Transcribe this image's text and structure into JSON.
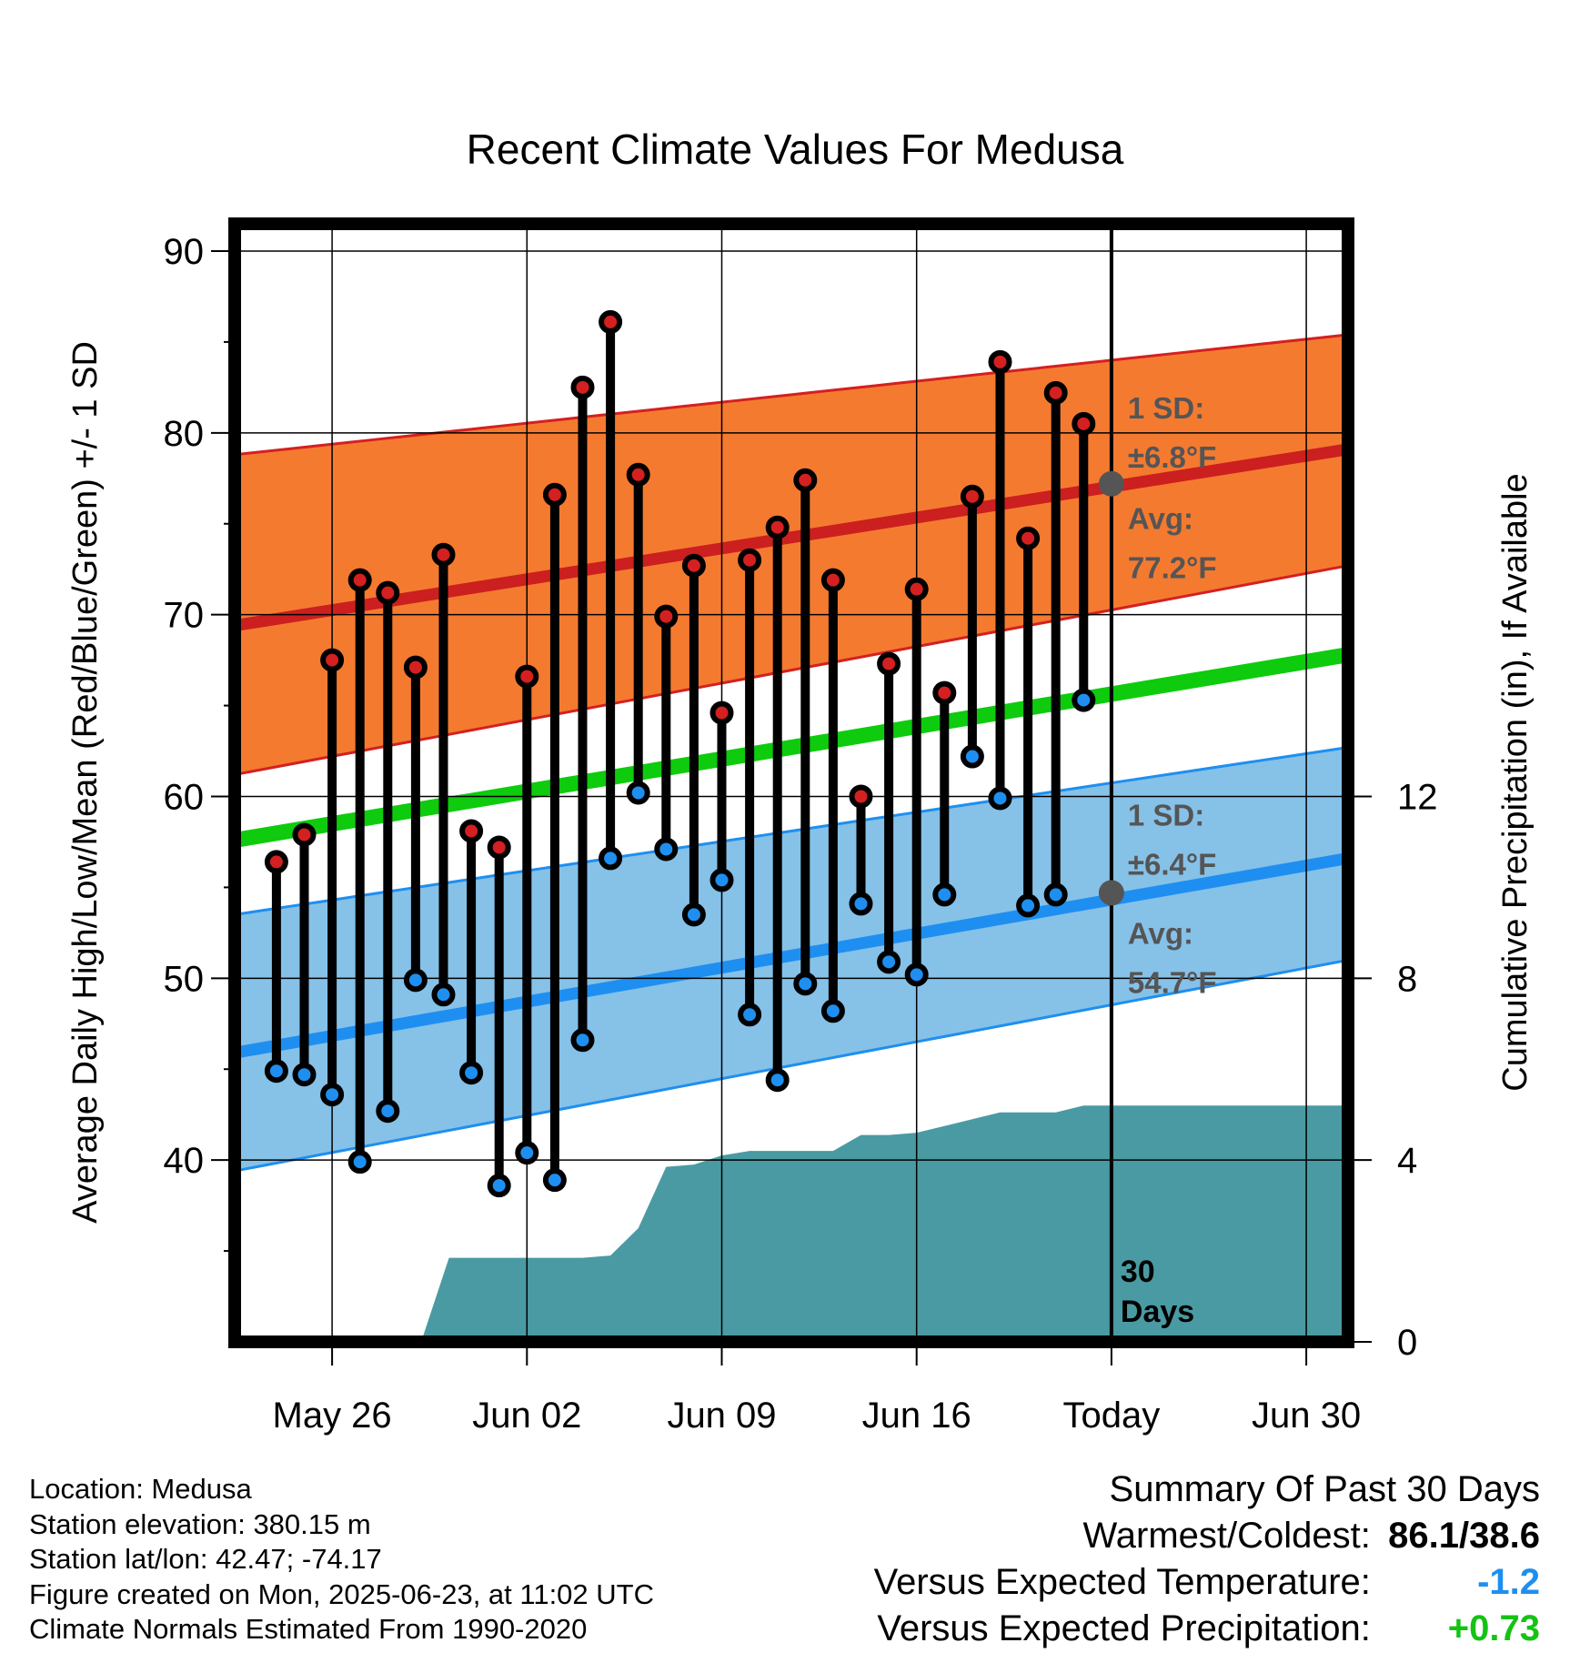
{
  "chart_data": {
    "type": "line",
    "title": "Recent Climate Values For Medusa",
    "xlabel": "Day",
    "ylabel": "Average Daily High/Low/Mean (Red/Blue/Green) +/- 1 SD",
    "y2label": "Cumulative Precipitation (in), If Available",
    "ylim": [
      30,
      91.5
    ],
    "y2lim": [
      0,
      24.6
    ],
    "x_ticks": [
      {
        "day": 4,
        "label": "May 26"
      },
      {
        "day": 11,
        "label": "Jun 02"
      },
      {
        "day": 18,
        "label": "Jun 09"
      },
      {
        "day": 25,
        "label": "Jun 16"
      },
      {
        "day": 32,
        "label": "Today"
      },
      {
        "day": 39,
        "label": "Jun 30"
      }
    ],
    "y_ticks": [
      40,
      50,
      60,
      70,
      80,
      90
    ],
    "y2_ticks": [
      0,
      4,
      8,
      12
    ],
    "grid": true,
    "days": [
      2,
      3,
      4,
      5,
      6,
      7,
      8,
      9,
      10,
      11,
      12,
      13,
      14,
      15,
      16,
      17,
      18,
      19,
      20,
      21,
      22,
      23,
      24,
      25,
      26,
      27,
      28,
      29,
      30,
      31
    ],
    "series": [
      {
        "name": "High",
        "color": "#d42020",
        "values": [
          56.4,
          57.9,
          67.5,
          71.9,
          71.2,
          67.1,
          73.3,
          58.1,
          57.2,
          66.6,
          76.6,
          82.5,
          86.1,
          77.7,
          69.9,
          72.7,
          64.6,
          73.0,
          74.8,
          77.4,
          71.9,
          60.0,
          67.3,
          71.4,
          65.7,
          76.5,
          83.9,
          74.2,
          82.2,
          80.5
        ]
      },
      {
        "name": "Low",
        "color": "#1e8ff0",
        "values": [
          44.9,
          44.7,
          43.6,
          39.9,
          42.7,
          49.9,
          49.1,
          44.8,
          38.6,
          40.4,
          38.9,
          46.6,
          56.6,
          60.2,
          57.1,
          53.5,
          55.4,
          48.0,
          44.4,
          49.7,
          48.2,
          54.1,
          50.9,
          50.2,
          54.6,
          62.2,
          59.9,
          54.0,
          54.6,
          65.3
        ]
      }
    ],
    "normals": {
      "days": [
        0.5,
        40.5
      ],
      "high_mean": [
        69.4,
        79.1
      ],
      "high_sd_upper": [
        78.8,
        85.4
      ],
      "high_sd_lower": [
        61.2,
        72.7
      ],
      "low_mean": [
        45.9,
        56.6
      ],
      "low_sd_upper": [
        53.5,
        62.7
      ],
      "low_sd_lower": [
        39.4,
        51.0
      ],
      "mean": [
        57.6,
        67.8
      ]
    },
    "precipitation": {
      "color": "#4a9aa3",
      "days": [
        7.2,
        8.2,
        9,
        10,
        11,
        12,
        13,
        14,
        15,
        16,
        17,
        18,
        19,
        20,
        21,
        22,
        23,
        24,
        25,
        26,
        27,
        28,
        29,
        30,
        31,
        32,
        40.5
      ],
      "values": [
        0,
        1.85,
        1.85,
        1.85,
        1.85,
        1.85,
        1.85,
        1.9,
        2.5,
        3.85,
        3.9,
        4.1,
        4.2,
        4.2,
        4.2,
        4.2,
        4.55,
        4.55,
        4.6,
        4.75,
        4.9,
        5.05,
        5.05,
        5.05,
        5.2,
        5.2,
        5.2
      ]
    },
    "today_day": 32,
    "annotations": {
      "high_sd": "±6.8°F",
      "high_avg": "77.2°F",
      "high_avg_value": 77.2,
      "low_sd": "±6.4°F",
      "low_avg": "54.7°F",
      "low_avg_value": 54.7,
      "sd_label": "1 SD:",
      "avg_label": "Avg:",
      "days_count": "30",
      "days_word": "Days"
    }
  },
  "info": {
    "location": "Location: Medusa",
    "elevation": "Station elevation: 380.15 m",
    "latlon": "Station lat/lon: 42.47; -74.17",
    "created": "Figure created on Mon, 2025-06-23, at 11:02 UTC",
    "normals": "Climate Normals Estimated From 1990-2020"
  },
  "summary": {
    "title": "Summary Of Past 30 Days",
    "warmest_label": "Warmest/Coldest:",
    "warmest_value": "86.1/38.6",
    "temp_label": "Versus Expected Temperature:",
    "temp_value": "-1.2",
    "precip_label": "Versus Expected Precipitation:",
    "precip_value": "+0.73"
  }
}
